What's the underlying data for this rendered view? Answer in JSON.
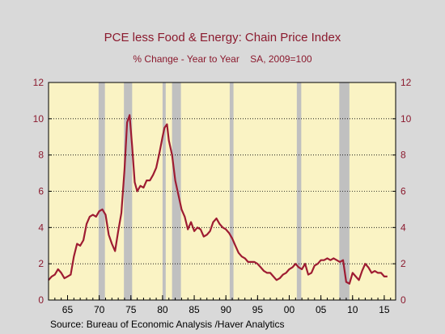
{
  "chart_data": {
    "type": "line",
    "title": "PCE less Food & Energy: Chain Price Index",
    "subtitle": "% Change - Year to Year    SA, 2009=100",
    "source": "Source:  Bureau of Economic Analysis /Haver Analytics",
    "xlim": [
      1962,
      2016.8
    ],
    "ylim": [
      0,
      12
    ],
    "y_ticks": [
      0,
      2,
      4,
      6,
      8,
      10,
      12
    ],
    "x_ticks": [
      1965,
      1970,
      1975,
      1980,
      1985,
      1990,
      1995,
      2000,
      2005,
      2010,
      2015
    ],
    "x_tick_labels": [
      "65",
      "70",
      "75",
      "80",
      "85",
      "90",
      "95",
      "00",
      "05",
      "10",
      "15"
    ],
    "grid": "horizontal dotted",
    "colors": {
      "background": "#d9d9d9",
      "plot_background": "#faf3c4",
      "line": "#9e1c32",
      "recession": "#c0c0c0",
      "axis_text": "#8b1a2e"
    },
    "recessions": [
      [
        1969.9,
        1970.9
      ],
      [
        1973.9,
        1975.2
      ],
      [
        1980.0,
        1980.5
      ],
      [
        1981.5,
        1982.9
      ],
      [
        1990.6,
        1991.2
      ],
      [
        2001.2,
        2001.9
      ],
      [
        2007.9,
        2009.5
      ]
    ],
    "series": [
      {
        "x": [
          1962.0,
          1962.5,
          1963.0,
          1963.5,
          1964.0,
          1964.5,
          1965.0,
          1965.5,
          1966.0,
          1966.5,
          1967.0,
          1967.5,
          1968.0,
          1968.5,
          1969.0,
          1969.5,
          1970.0,
          1970.5,
          1971.0,
          1971.5,
          1972.0,
          1972.5,
          1973.0,
          1973.5,
          1974.0,
          1974.4,
          1974.8,
          1975.2,
          1975.6,
          1976.0,
          1976.5,
          1977.0,
          1977.5,
          1978.0,
          1978.5,
          1979.0,
          1979.5,
          1980.0,
          1980.3,
          1980.7,
          1981.0,
          1981.5,
          1982.0,
          1982.5,
          1983.0,
          1983.5,
          1984.0,
          1984.5,
          1985.0,
          1985.5,
          1986.0,
          1986.5,
          1987.0,
          1987.5,
          1988.0,
          1988.5,
          1989.0,
          1989.5,
          1990.0,
          1990.5,
          1991.0,
          1991.5,
          1992.0,
          1992.5,
          1993.0,
          1993.5,
          1994.0,
          1994.5,
          1995.0,
          1995.5,
          1996.0,
          1996.5,
          1997.0,
          1997.5,
          1998.0,
          1998.5,
          1999.0,
          1999.5,
          2000.0,
          2000.5,
          2001.0,
          2001.5,
          2002.0,
          2002.5,
          2003.0,
          2003.5,
          2004.0,
          2004.5,
          2005.0,
          2005.5,
          2006.0,
          2006.5,
          2007.0,
          2007.5,
          2008.0,
          2008.5,
          2009.0,
          2009.5,
          2010.0,
          2010.5,
          2011.0,
          2011.5,
          2012.0,
          2012.5,
          2013.0,
          2013.5,
          2014.0,
          2014.5,
          2015.0,
          2015.5
        ],
        "y": [
          1.1,
          1.3,
          1.4,
          1.7,
          1.5,
          1.2,
          1.3,
          1.4,
          2.4,
          3.1,
          3.0,
          3.3,
          4.2,
          4.6,
          4.7,
          4.6,
          4.9,
          5.0,
          4.7,
          3.6,
          3.1,
          2.7,
          3.8,
          4.8,
          7.2,
          9.8,
          10.2,
          8.5,
          6.5,
          6.0,
          6.3,
          6.2,
          6.6,
          6.6,
          6.9,
          7.3,
          8.1,
          9.0,
          9.5,
          9.7,
          8.8,
          8.0,
          6.6,
          5.8,
          5.0,
          4.6,
          3.9,
          4.3,
          3.8,
          4.0,
          3.9,
          3.5,
          3.6,
          3.8,
          4.3,
          4.5,
          4.2,
          4.0,
          3.9,
          3.7,
          3.4,
          3.0,
          2.6,
          2.4,
          2.3,
          2.1,
          2.1,
          2.1,
          2.0,
          1.8,
          1.6,
          1.5,
          1.5,
          1.3,
          1.1,
          1.2,
          1.4,
          1.5,
          1.7,
          1.8,
          2.0,
          1.8,
          1.7,
          2.0,
          1.4,
          1.5,
          1.9,
          2.0,
          2.2,
          2.2,
          2.3,
          2.2,
          2.3,
          2.2,
          2.1,
          2.2,
          1.0,
          0.9,
          1.5,
          1.3,
          1.1,
          1.6,
          2.0,
          1.8,
          1.5,
          1.6,
          1.5,
          1.5,
          1.3,
          1.3
        ]
      }
    ]
  }
}
